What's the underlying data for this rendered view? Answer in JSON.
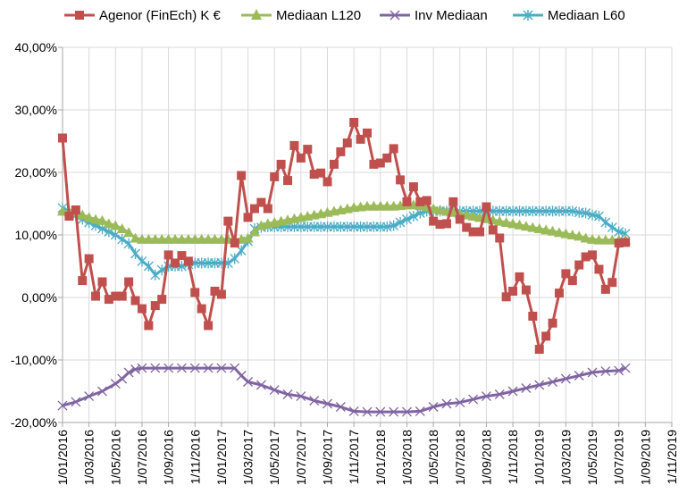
{
  "chart_data": {
    "type": "line",
    "title": "",
    "xlabel": "",
    "ylabel": "",
    "ylim": [
      -20,
      40
    ],
    "yticks": [
      "-20,00%",
      "-10,00%",
      "0,00%",
      "10,00%",
      "20,00%",
      "30,00%",
      "40,00%"
    ],
    "yticks_values": [
      -20,
      -10,
      0,
      10,
      20,
      30,
      40
    ],
    "x_ticks": [
      "1/01/2016",
      "1/03/2016",
      "1/05/2016",
      "1/07/2016",
      "1/09/2016",
      "1/11/2016",
      "1/01/2017",
      "1/03/2017",
      "1/05/2017",
      "1/07/2017",
      "1/09/2017",
      "1/11/2017",
      "1/01/2018",
      "1/03/2018",
      "1/05/2018",
      "1/07/2018",
      "1/09/2018",
      "1/11/2018",
      "1/01/2019",
      "1/03/2019",
      "1/05/2019",
      "1/07/2019",
      "1/09/2019",
      "1/11/2019"
    ],
    "x_range_months": [
      0,
      46
    ],
    "grid": true,
    "legend_position": "top",
    "colors": {
      "agenor": "#c0504d",
      "l120": "#9bbb59",
      "inv": "#8064a2",
      "l60": "#4bacc6",
      "grid": "#d9d9d9",
      "axis": "#a6a6a6"
    },
    "series": [
      {
        "name": "Agenor  (FinEch) K €",
        "key": "agenor",
        "marker": "square",
        "points": [
          [
            0,
            25.5
          ],
          [
            0.5,
            13
          ],
          [
            1,
            14
          ],
          [
            1.5,
            2.7
          ],
          [
            2,
            6.2
          ],
          [
            2.5,
            0.2
          ],
          [
            3,
            2.5
          ],
          [
            3.5,
            -0.3
          ],
          [
            4,
            0.2
          ],
          [
            4.5,
            0.2
          ],
          [
            5,
            2.5
          ],
          [
            5.5,
            -0.5
          ],
          [
            6,
            -1.8
          ],
          [
            6.5,
            -4.5
          ],
          [
            7,
            -1.3
          ],
          [
            7.5,
            -0.3
          ],
          [
            8,
            6.8
          ],
          [
            8.5,
            5.5
          ],
          [
            9,
            6.7
          ],
          [
            9.5,
            5.8
          ],
          [
            10,
            0.8
          ],
          [
            10.5,
            -1.8
          ],
          [
            11,
            -4.5
          ],
          [
            11.5,
            1
          ],
          [
            12,
            0.5
          ],
          [
            12.5,
            12.2
          ],
          [
            13,
            8.7
          ],
          [
            13.5,
            19.5
          ],
          [
            14,
            12.8
          ],
          [
            14.5,
            14.2
          ],
          [
            15,
            15.2
          ],
          [
            15.5,
            14.2
          ],
          [
            16,
            19.3
          ],
          [
            16.5,
            21.3
          ],
          [
            17,
            18.7
          ],
          [
            17.5,
            24.3
          ],
          [
            18,
            22.3
          ],
          [
            18.5,
            23.7
          ],
          [
            19,
            19.7
          ],
          [
            19.5,
            19.9
          ],
          [
            20,
            18.5
          ],
          [
            20.5,
            21.3
          ],
          [
            21,
            23.3
          ],
          [
            21.5,
            24.7
          ],
          [
            22,
            28
          ],
          [
            22.5,
            25.3
          ],
          [
            23,
            26.3
          ],
          [
            23.5,
            21.3
          ],
          [
            24,
            21.5
          ],
          [
            24.5,
            22.3
          ],
          [
            25,
            23.8
          ],
          [
            25.5,
            18.8
          ],
          [
            26,
            15.3
          ],
          [
            26.5,
            17.7
          ],
          [
            27,
            15.3
          ],
          [
            27.5,
            15.5
          ],
          [
            28,
            12.2
          ],
          [
            28.5,
            11.7
          ],
          [
            29,
            11.8
          ],
          [
            29.5,
            15.3
          ],
          [
            30,
            12.5
          ],
          [
            30.5,
            11.2
          ],
          [
            31,
            10.5
          ],
          [
            31.5,
            10.5
          ],
          [
            32,
            14.5
          ],
          [
            32.5,
            10.8
          ],
          [
            33,
            9.5
          ],
          [
            33.5,
            0.1
          ],
          [
            34,
            1
          ],
          [
            34.5,
            3.3
          ],
          [
            35,
            1.2
          ],
          [
            35.5,
            -3
          ],
          [
            36,
            -8.3
          ],
          [
            36.5,
            -6.2
          ],
          [
            37,
            -4.1
          ],
          [
            37.5,
            0.7
          ],
          [
            38,
            3.8
          ],
          [
            38.5,
            2.7
          ],
          [
            39,
            5.2
          ],
          [
            39.5,
            6.5
          ],
          [
            40,
            6.8
          ],
          [
            40.5,
            4.5
          ],
          [
            41,
            1.3
          ],
          [
            41.5,
            2.4
          ],
          [
            42,
            8.7
          ],
          [
            42.5,
            8.8
          ]
        ]
      },
      {
        "name": "Mediaan L120",
        "key": "l120",
        "marker": "triangle",
        "points": [
          [
            0,
            13.8
          ],
          [
            0.5,
            13.7
          ],
          [
            1,
            13.6
          ],
          [
            1.5,
            13.2
          ],
          [
            2,
            12.8
          ],
          [
            2.5,
            12.5
          ],
          [
            3,
            12.3
          ],
          [
            3.5,
            11.8
          ],
          [
            4,
            11.5
          ],
          [
            4.5,
            11
          ],
          [
            5,
            10.4
          ],
          [
            5.5,
            9.5
          ],
          [
            6,
            9.3
          ],
          [
            6.5,
            9.3
          ],
          [
            7,
            9.3
          ],
          [
            7.5,
            9.3
          ],
          [
            8,
            9.3
          ],
          [
            8.5,
            9.3
          ],
          [
            9,
            9.3
          ],
          [
            9.5,
            9.3
          ],
          [
            10,
            9.3
          ],
          [
            10.5,
            9.3
          ],
          [
            11,
            9.3
          ],
          [
            11.5,
            9.3
          ],
          [
            12,
            9.3
          ],
          [
            12.5,
            9.3
          ],
          [
            13,
            9.3
          ],
          [
            13.5,
            9.3
          ],
          [
            14,
            9.5
          ],
          [
            14.5,
            10.5
          ],
          [
            15,
            11.5
          ],
          [
            15.5,
            11.8
          ],
          [
            16,
            12
          ],
          [
            16.5,
            12.2
          ],
          [
            17,
            12.4
          ],
          [
            17.5,
            12.6
          ],
          [
            18,
            12.8
          ],
          [
            18.5,
            13
          ],
          [
            19,
            13.2
          ],
          [
            19.5,
            13.4
          ],
          [
            20,
            13.6
          ],
          [
            20.5,
            13.8
          ],
          [
            21,
            14
          ],
          [
            21.5,
            14.2
          ],
          [
            22,
            14.4
          ],
          [
            22.5,
            14.5
          ],
          [
            23,
            14.6
          ],
          [
            23.5,
            14.6
          ],
          [
            24,
            14.6
          ],
          [
            24.5,
            14.6
          ],
          [
            25,
            14.6
          ],
          [
            25.5,
            14.7
          ],
          [
            26,
            14.8
          ],
          [
            26.5,
            14.8
          ],
          [
            27,
            14.7
          ],
          [
            27.5,
            14.5
          ],
          [
            28,
            14.2
          ],
          [
            28.5,
            14
          ],
          [
            29,
            13.8
          ],
          [
            29.5,
            13.6
          ],
          [
            30,
            13.4
          ],
          [
            30.5,
            13.2
          ],
          [
            31,
            13
          ],
          [
            31.5,
            12.8
          ],
          [
            32,
            12.6
          ],
          [
            32.5,
            12.4
          ],
          [
            33,
            12.2
          ],
          [
            33.5,
            12
          ],
          [
            34,
            11.8
          ],
          [
            34.5,
            11.6
          ],
          [
            35,
            11.4
          ],
          [
            35.5,
            11.2
          ],
          [
            36,
            11
          ],
          [
            36.5,
            10.8
          ],
          [
            37,
            10.6
          ],
          [
            37.5,
            10.4
          ],
          [
            38,
            10.2
          ],
          [
            38.5,
            10
          ],
          [
            39,
            9.8
          ],
          [
            39.5,
            9.5
          ],
          [
            40,
            9.3
          ],
          [
            40.5,
            9.2
          ],
          [
            41,
            9.2
          ],
          [
            41.5,
            9.2
          ],
          [
            42,
            9.2
          ],
          [
            42.5,
            9.2
          ]
        ]
      },
      {
        "name": "Inv Mediaan",
        "key": "inv",
        "marker": "x",
        "points": [
          [
            0,
            -17.3
          ],
          [
            1,
            -16.7
          ],
          [
            2,
            -15.8
          ],
          [
            3,
            -15
          ],
          [
            4,
            -13.8
          ],
          [
            4.5,
            -13
          ],
          [
            5,
            -12
          ],
          [
            5.5,
            -11.5
          ],
          [
            6,
            -11.3
          ],
          [
            7,
            -11.3
          ],
          [
            8,
            -11.3
          ],
          [
            9,
            -11.3
          ],
          [
            10,
            -11.3
          ],
          [
            11,
            -11.3
          ],
          [
            12,
            -11.3
          ],
          [
            13,
            -11.3
          ],
          [
            13.5,
            -12.5
          ],
          [
            14,
            -13.5
          ],
          [
            15,
            -14
          ],
          [
            16,
            -14.8
          ],
          [
            17,
            -15.5
          ],
          [
            18,
            -15.8
          ],
          [
            19,
            -16.5
          ],
          [
            20,
            -17
          ],
          [
            21,
            -17.5
          ],
          [
            22,
            -18.2
          ],
          [
            23,
            -18.3
          ],
          [
            24,
            -18.3
          ],
          [
            25,
            -18.3
          ],
          [
            26,
            -18.3
          ],
          [
            27,
            -18.2
          ],
          [
            28,
            -17.5
          ],
          [
            29,
            -17
          ],
          [
            30,
            -16.8
          ],
          [
            31,
            -16.3
          ],
          [
            32,
            -15.8
          ],
          [
            33,
            -15.5
          ],
          [
            34,
            -15
          ],
          [
            35,
            -14.5
          ],
          [
            36,
            -14
          ],
          [
            37,
            -13.5
          ],
          [
            38,
            -13
          ],
          [
            39,
            -12.5
          ],
          [
            40,
            -12
          ],
          [
            41,
            -11.8
          ],
          [
            42,
            -11.7
          ],
          [
            42.5,
            -11.3
          ]
        ]
      },
      {
        "name": "Mediaan L60",
        "key": "l60",
        "marker": "star",
        "points": [
          [
            0,
            14.3
          ],
          [
            0.5,
            13.7
          ],
          [
            1,
            13.1
          ],
          [
            1.5,
            12.5
          ],
          [
            2,
            12
          ],
          [
            2.5,
            11.5
          ],
          [
            3,
            11
          ],
          [
            3.5,
            10.5
          ],
          [
            4,
            10
          ],
          [
            4.5,
            9.3
          ],
          [
            5,
            8.6
          ],
          [
            5.5,
            7
          ],
          [
            6,
            5.8
          ],
          [
            6.5,
            5
          ],
          [
            7,
            3.6
          ],
          [
            7.5,
            4.4
          ],
          [
            8,
            5
          ],
          [
            8.5,
            5
          ],
          [
            9,
            5
          ],
          [
            9.5,
            5.3
          ],
          [
            10,
            5.5
          ],
          [
            10.5,
            5.5
          ],
          [
            11,
            5.5
          ],
          [
            11.5,
            5.5
          ],
          [
            12,
            5.5
          ],
          [
            12.5,
            5.5
          ],
          [
            13,
            6.2
          ],
          [
            13.5,
            7.5
          ],
          [
            14,
            9
          ],
          [
            14.5,
            11
          ],
          [
            15,
            11.2
          ],
          [
            15.5,
            11.3
          ],
          [
            16,
            11.3
          ],
          [
            16.5,
            11.3
          ],
          [
            17,
            11.3
          ],
          [
            17.5,
            11.3
          ],
          [
            18,
            11.3
          ],
          [
            18.5,
            11.3
          ],
          [
            19,
            11.3
          ],
          [
            19.5,
            11.3
          ],
          [
            20,
            11.3
          ],
          [
            20.5,
            11.3
          ],
          [
            21,
            11.3
          ],
          [
            21.5,
            11.3
          ],
          [
            22,
            11.3
          ],
          [
            22.5,
            11.3
          ],
          [
            23,
            11.3
          ],
          [
            23.5,
            11.3
          ],
          [
            24,
            11.3
          ],
          [
            24.5,
            11.3
          ],
          [
            25,
            11.5
          ],
          [
            25.5,
            12
          ],
          [
            26,
            12.5
          ],
          [
            26.5,
            13
          ],
          [
            27,
            13.5
          ],
          [
            27.5,
            13.8
          ],
          [
            28,
            13.8
          ],
          [
            28.5,
            13.8
          ],
          [
            29,
            13.8
          ],
          [
            29.5,
            13.8
          ],
          [
            30,
            13.8
          ],
          [
            30.5,
            13.8
          ],
          [
            31,
            13.8
          ],
          [
            31.5,
            13.8
          ],
          [
            32,
            13.8
          ],
          [
            32.5,
            13.8
          ],
          [
            33,
            13.8
          ],
          [
            33.5,
            13.8
          ],
          [
            34,
            13.8
          ],
          [
            34.5,
            13.8
          ],
          [
            35,
            13.8
          ],
          [
            35.5,
            13.8
          ],
          [
            36,
            13.8
          ],
          [
            36.5,
            13.8
          ],
          [
            37,
            13.8
          ],
          [
            37.5,
            13.8
          ],
          [
            38,
            13.8
          ],
          [
            38.5,
            13.8
          ],
          [
            39,
            13.6
          ],
          [
            39.5,
            13.5
          ],
          [
            40,
            13.2
          ],
          [
            40.5,
            13
          ],
          [
            41,
            12
          ],
          [
            41.5,
            11.2
          ],
          [
            42,
            10.5
          ],
          [
            42.5,
            10.2
          ]
        ]
      }
    ]
  }
}
